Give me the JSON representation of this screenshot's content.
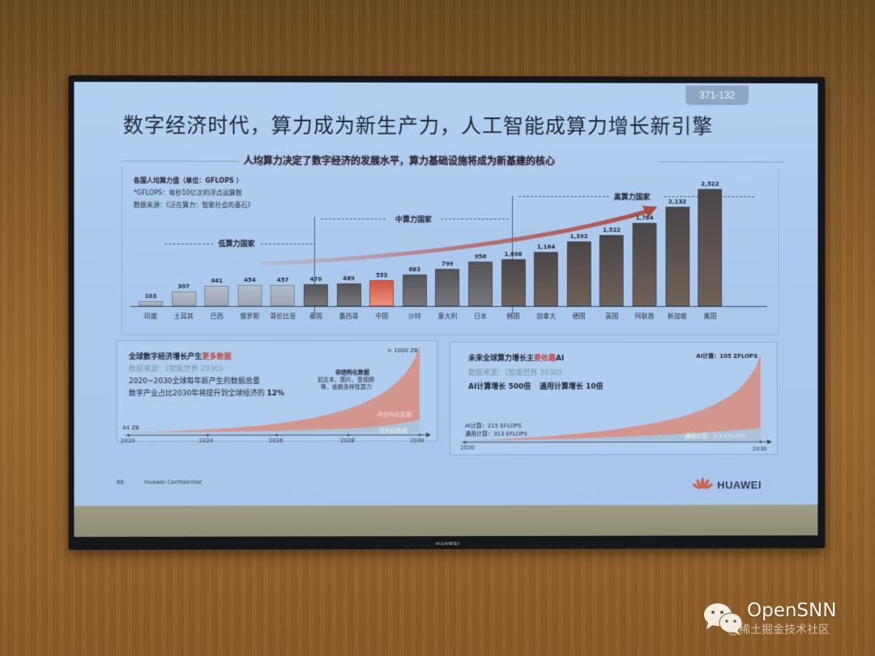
{
  "slide": {
    "badge": "371-132",
    "title": "数字经济时代，算力成为新生产力，人工智能成算力增长新引擎",
    "subtitle": "人均算力决定了数字经济的发展水平，算力基础设施将成为新基建的核心",
    "footer_page": "68",
    "footer_confidential": "Huawei Confidential",
    "logo_text": "HUAWEI",
    "tv_brand": "HUAWEI"
  },
  "top_panel": {
    "legend_title": "各国人均算力值（单位：",
    "legend_unit": "GFLOPS ）",
    "legend_note": "*GFLOPS：每秒10亿次的浮点运算数",
    "legend_source": "数据来源：《泛在算力：智能社会的基石》",
    "groups": {
      "low": "低算力国家",
      "mid": "中算力国家",
      "high": "高算力国家"
    }
  },
  "left_panel": {
    "title_a": "全球数字经济增长产生",
    "title_b": "更多数据",
    "source": "数据来源：《智能世界 2030》",
    "line1": "2020~2030全球每年新产生的数据总量",
    "line2_a": "数字产业占比2030年将提升到全球经济的",
    "line2_b": "12%",
    "start_label": "44 ZB",
    "end_label": "> 1000 ZB",
    "annot_title": "非结构化数据",
    "annot_l1": "如文本、图片、音视频",
    "annot_l2": "等，依赖多样性算力",
    "band_upper": "非结构化数据",
    "band_lower": "结构化数据",
    "years": [
      "2020",
      "2024",
      "2026",
      "2028",
      "2030"
    ]
  },
  "right_panel": {
    "title_a": "未来全球算力增长主",
    "title_b": "要依靠",
    "title_c": "AI",
    "source": "数据来源：《智能世界 2030》",
    "line_a": "AI计算增长 500倍",
    "line_b": "通用计算增长 10倍",
    "start_ai": "AI计算：215 EFLOPS",
    "start_general": "通用计算：313 EFLOPS",
    "end_ai": "AI计算：105 ZFLOPS",
    "band_lower": "通用计算：3.3 ZFLOPS",
    "years": [
      "2020",
      "2030"
    ]
  },
  "watermark": {
    "brand": "OpenSNN",
    "sub": "@稀土掘金技术社区"
  },
  "colors": {
    "accent_red": "#c8553f",
    "bar_dark": "#5c5654",
    "bar_light": "#a9b1be",
    "screen_bg": "#aac8ec"
  },
  "chart_data": [
    {
      "type": "bar",
      "title": "各国人均算力值（单位：GFLOPS）",
      "categories": [
        "印度",
        "土耳其",
        "巴西",
        "俄罗斯",
        "哥伦比亚",
        "泰国",
        "墨西哥",
        "中国",
        "沙特",
        "意大利",
        "日本",
        "韩国",
        "加拿大",
        "德国",
        "英国",
        "阿联酋",
        "新加坡",
        "美国"
      ],
      "values": [
        103,
        307,
        441,
        454,
        457,
        470,
        489,
        553,
        683,
        799,
        956,
        1008,
        1164,
        1392,
        1522,
        1784,
        2132,
        2522
      ],
      "value_labels": [
        "103",
        "307",
        "441",
        "454",
        "457",
        "470",
        "489",
        "553",
        "683",
        "799",
        "956",
        "1,008",
        "1,164",
        "1,392",
        "1,522",
        "1,784",
        "2,132",
        "2,522"
      ],
      "groups": [
        {
          "name": "低算力国家",
          "members": [
            "印度",
            "土耳其",
            "巴西",
            "俄罗斯",
            "哥伦比亚"
          ]
        },
        {
          "name": "中算力国家",
          "members": [
            "泰国",
            "墨西哥",
            "中国",
            "沙特",
            "意大利",
            "日本"
          ]
        },
        {
          "name": "高算力国家",
          "members": [
            "韩国",
            "加拿大",
            "德国",
            "英国",
            "阿联酋",
            "新加坡",
            "美国"
          ]
        }
      ],
      "highlight": "中国",
      "xlabel": "",
      "ylabel": "GFLOPS",
      "ylim": [
        0,
        2600
      ],
      "grid": false
    },
    {
      "type": "area",
      "title": "全球数字经济增长产生更多数据",
      "x": [
        "2020",
        "2024",
        "2026",
        "2028",
        "2030"
      ],
      "series": [
        {
          "name": "结构化数据",
          "values": [
            5,
            12,
            20,
            35,
            80
          ]
        },
        {
          "name": "非结构化数据",
          "values": [
            39,
            150,
            260,
            450,
            950
          ]
        }
      ],
      "annotations": [
        "44 ZB (2020)",
        "> 1000 ZB (2030)"
      ],
      "ylabel": "ZB"
    },
    {
      "type": "area",
      "title": "未来全球算力增长主要依靠AI",
      "x": [
        "2020",
        "2030"
      ],
      "series": [
        {
          "name": "通用计算",
          "values": [
            0.313,
            3.3
          ]
        },
        {
          "name": "AI计算",
          "values": [
            0.215,
            105
          ]
        }
      ],
      "annotations": [
        "AI计算：215 EFLOPS",
        "通用计算：313 EFLOPS",
        "AI计算：105 ZFLOPS",
        "AI计算增长 500倍",
        "通用计算增长 10倍"
      ],
      "ylabel": "FLOPS"
    }
  ]
}
